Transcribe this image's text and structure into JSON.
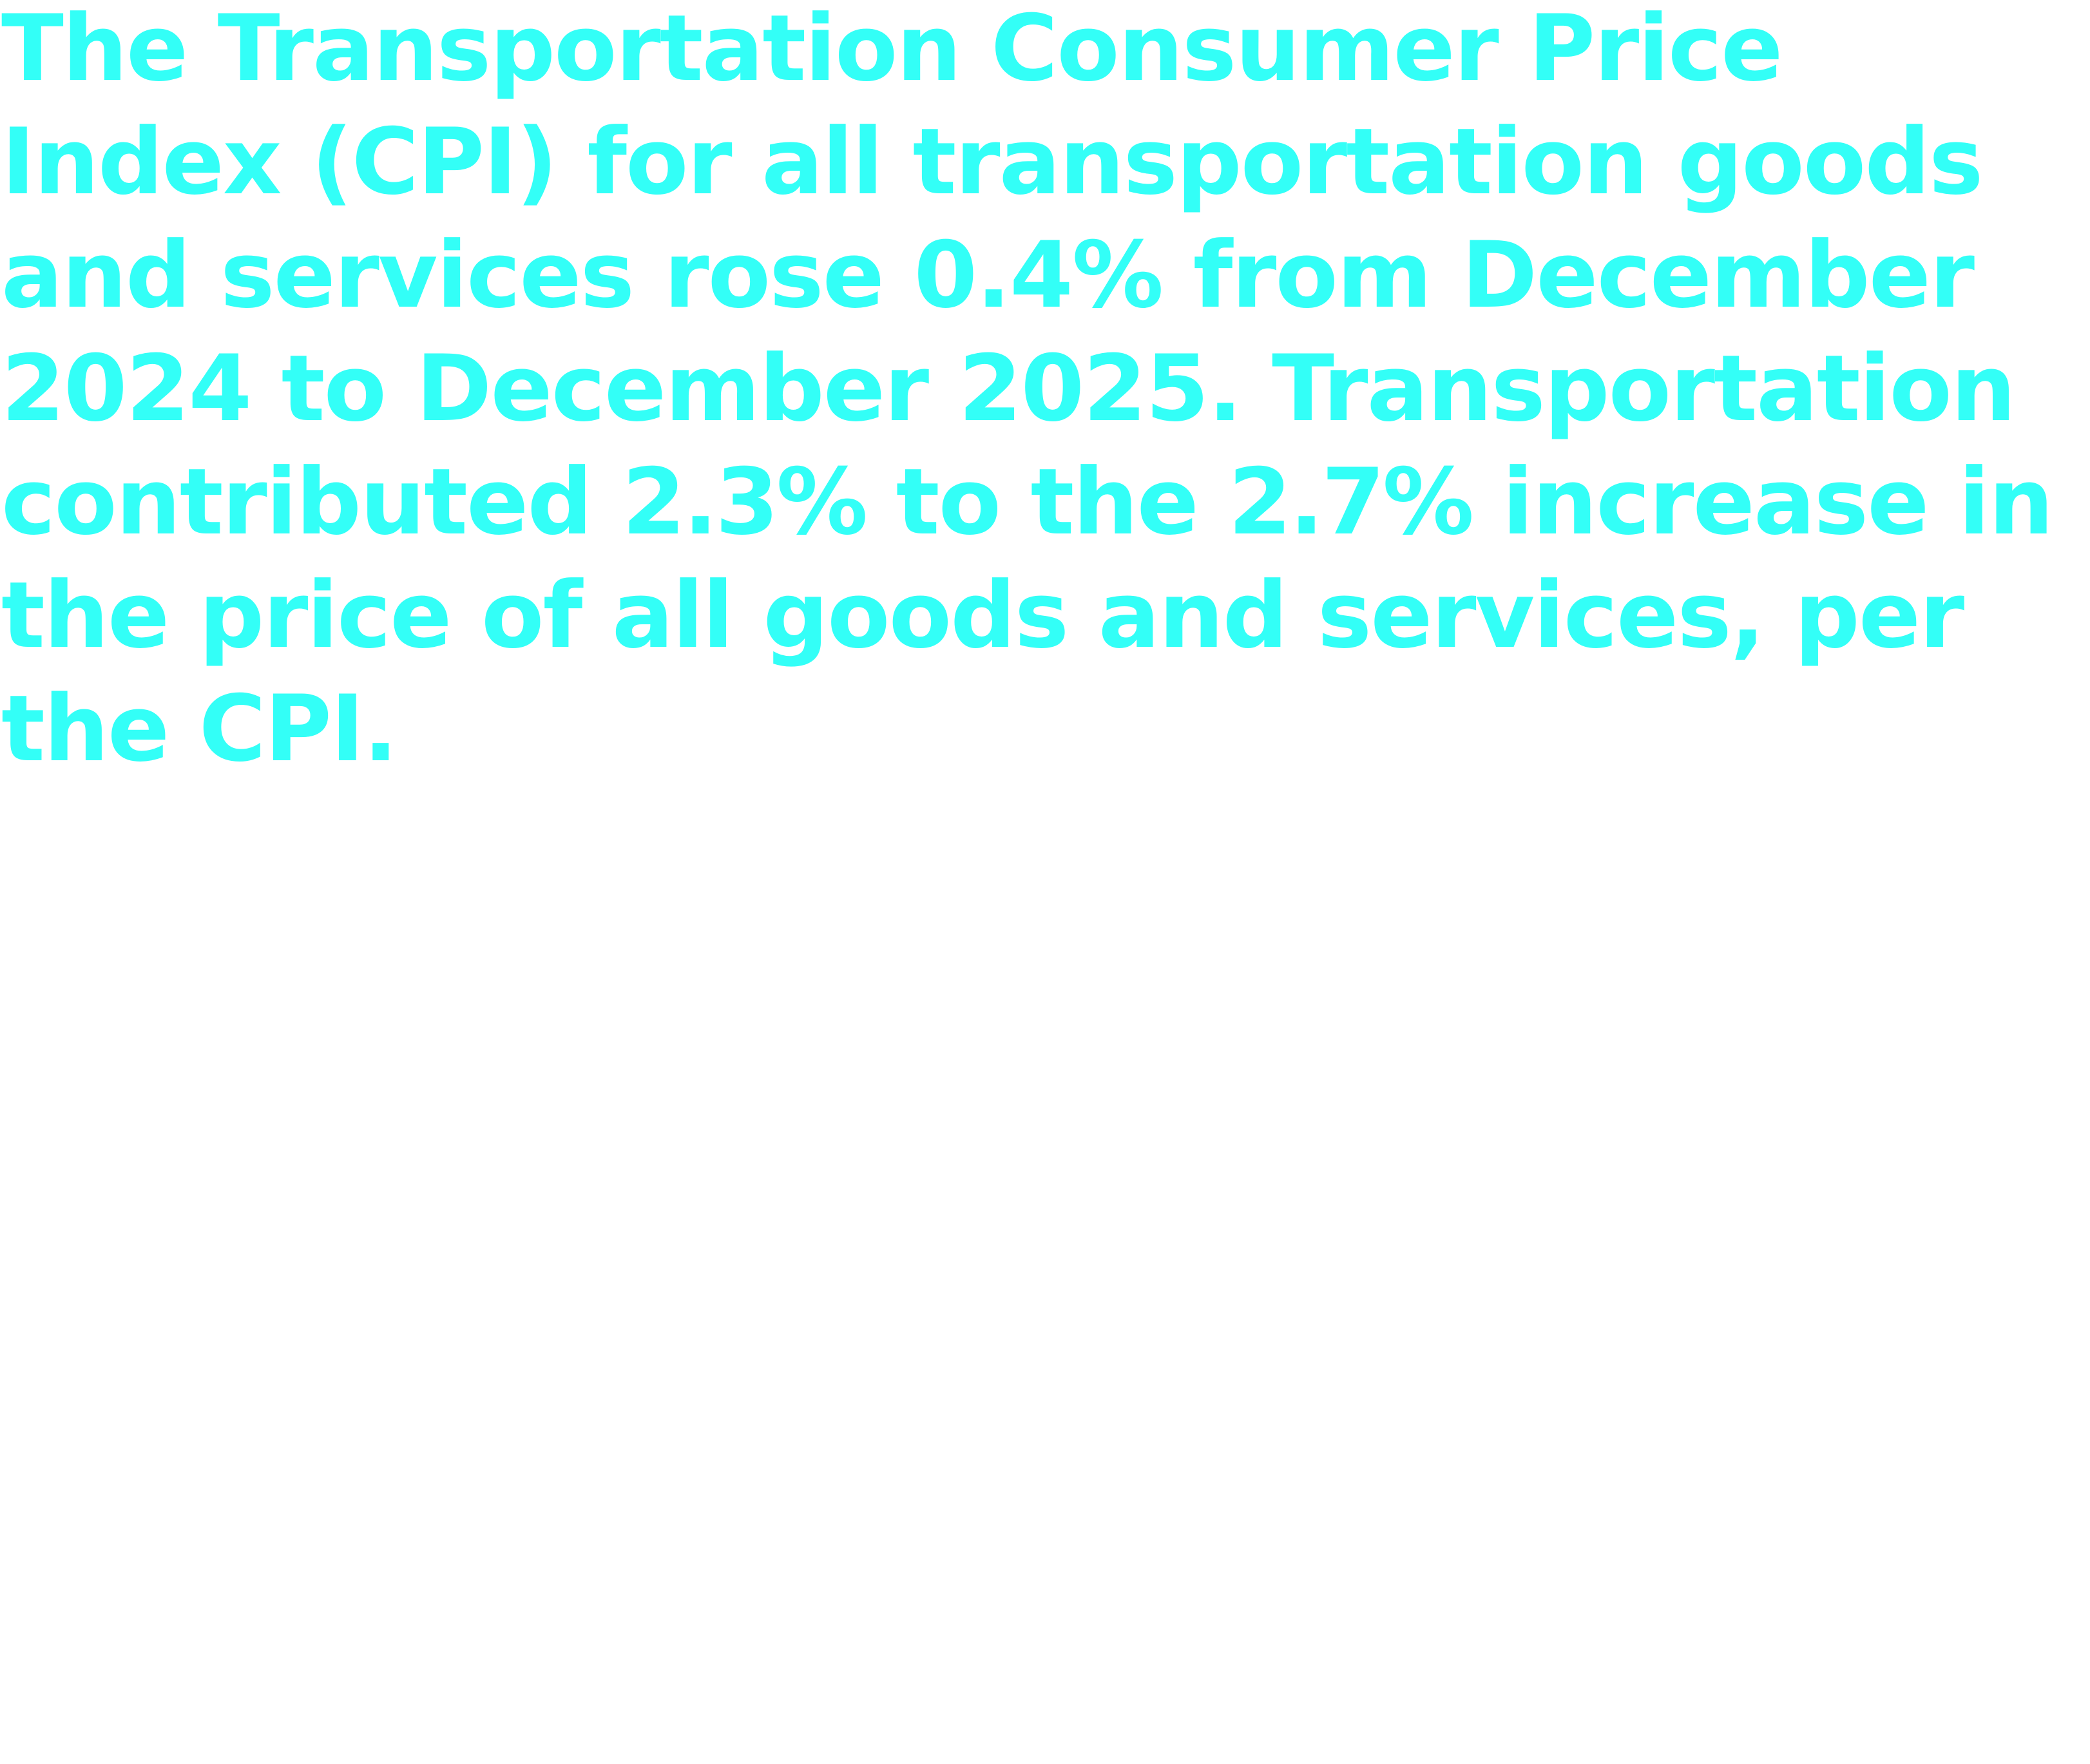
{
  "statement": {
    "part1": "The Transportation Consumer Price Index (CPI) for all transportation goods and services rose 0.4% from December 2024 to December 2025. Transportation contributed ",
    "transport_contribution": "2.3%",
    "part2": " to the ",
    "all_items_increase": "2.7%",
    "part3": " increase in the price of all goods and services, per the CPI."
  },
  "colors": {
    "text": "#33fff7",
    "background": "#ffffff"
  }
}
